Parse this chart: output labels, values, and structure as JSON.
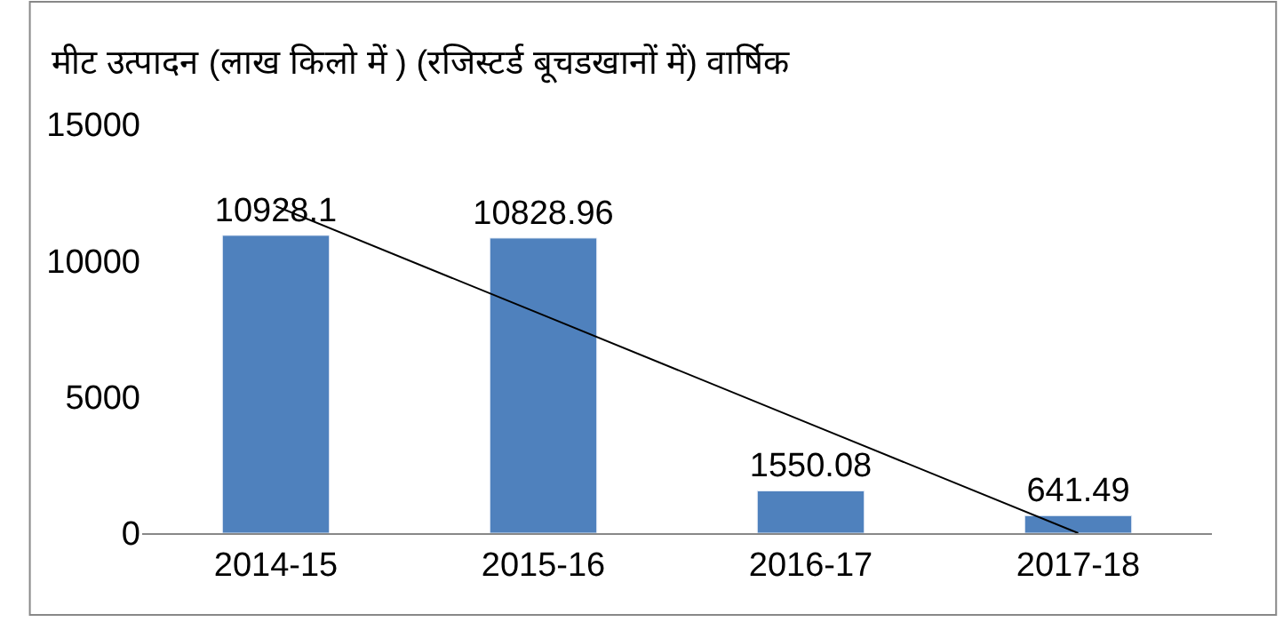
{
  "chart_data": {
    "type": "bar",
    "title": "मीट उत्पादन (लाख किलो में ) (रजिस्टर्ड बूचडखानों में) वार्षिक",
    "categories": [
      "2014-15",
      "2015-16",
      "2016-17",
      "2017-18"
    ],
    "series": [
      {
        "color": "#4f81bd",
        "values": [
          10928.1,
          10828.96,
          1550.08,
          641.49
        ],
        "value_labels": [
          "10928.1",
          "10828.96",
          "1550.08",
          "641.49"
        ]
      },
      {
        "type": "line",
        "color": "#000000",
        "values": [
          12000,
          8000,
          4000,
          0
        ]
      }
    ],
    "ylim": [
      0,
      15000
    ],
    "yticks": [
      0,
      5000,
      10000,
      15000
    ],
    "legend": false
  }
}
